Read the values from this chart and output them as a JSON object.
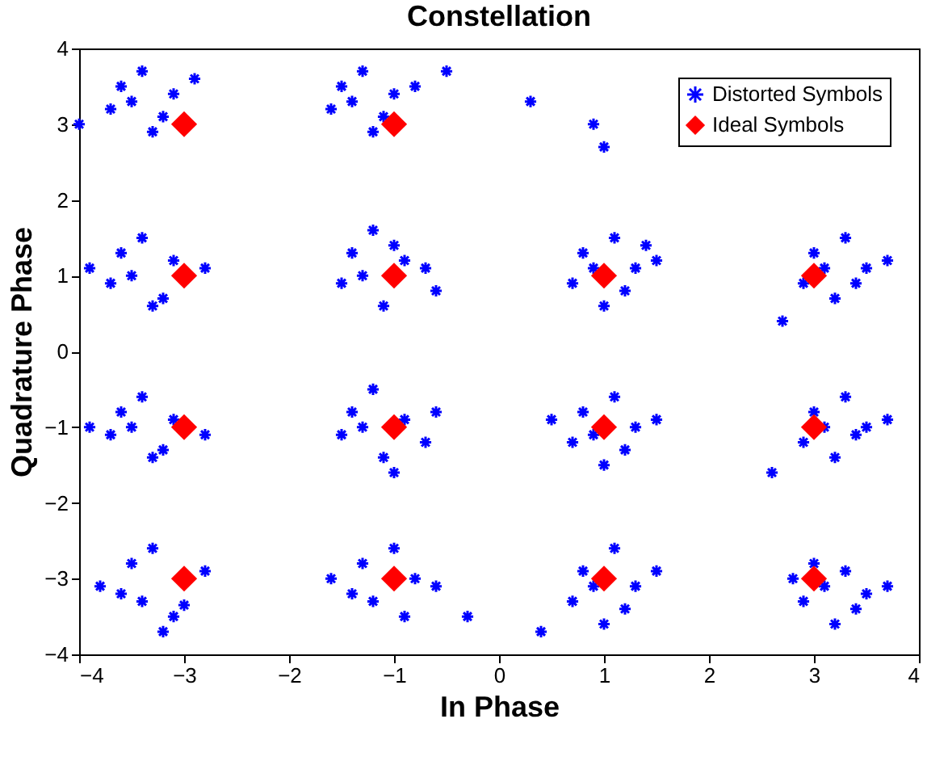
{
  "chart_data": {
    "type": "scatter",
    "title": "Constellation",
    "xlabel": "In Phase",
    "ylabel": "Quadrature Phase",
    "xlim": [
      -4,
      4
    ],
    "ylim": [
      -4,
      4
    ],
    "xticks": [
      -4,
      -3,
      -2,
      -1,
      0,
      1,
      2,
      3,
      4
    ],
    "yticks": [
      -4,
      -3,
      -2,
      -1,
      0,
      1,
      2,
      3,
      4
    ],
    "grid": false,
    "legend": "top right",
    "series": [
      {
        "name": "Distorted Symbols",
        "color": "#0000ff",
        "marker": "cross",
        "x": [
          -3.6,
          -3.4,
          -3.1,
          -3.7,
          -3.2,
          -3.5,
          -2.9,
          -3.3,
          -4.0,
          -1.5,
          -1.3,
          -1.0,
          -1.6,
          -1.1,
          -1.4,
          -0.8,
          -1.2,
          -0.5,
          0.3,
          0.9,
          1.0,
          -3.6,
          -3.4,
          -3.1,
          -3.7,
          -3.2,
          -3.5,
          -2.8,
          -3.3,
          -3.9,
          -1.4,
          -1.2,
          -0.9,
          -1.5,
          -1.1,
          -1.3,
          -0.7,
          -1.0,
          -0.6,
          0.8,
          1.1,
          1.3,
          0.7,
          1.0,
          1.2,
          1.5,
          0.9,
          1.4,
          3.0,
          3.3,
          3.5,
          2.9,
          3.2,
          3.4,
          3.7,
          3.1,
          2.7,
          -3.6,
          -3.4,
          -3.1,
          -3.7,
          -3.2,
          -3.5,
          -2.8,
          -3.3,
          -3.9,
          -1.4,
          -1.2,
          -0.9,
          -1.5,
          -1.1,
          -1.3,
          -0.7,
          -1.0,
          -0.6,
          0.8,
          1.1,
          1.3,
          0.7,
          1.0,
          1.2,
          1.5,
          0.9,
          0.5,
          3.0,
          3.3,
          3.5,
          2.9,
          3.2,
          3.4,
          3.7,
          3.1,
          2.6,
          -3.5,
          -3.3,
          -3.0,
          -3.6,
          -3.1,
          -3.4,
          -2.8,
          -3.2,
          -3.8,
          -1.3,
          -1.0,
          -0.8,
          -1.4,
          -0.9,
          -1.2,
          -0.6,
          -1.6,
          -0.3,
          0.8,
          1.1,
          1.3,
          0.7,
          1.0,
          1.2,
          1.5,
          0.9,
          0.4,
          3.0,
          3.3,
          3.5,
          2.9,
          3.2,
          3.4,
          3.7,
          3.1,
          2.8
        ],
        "values": [
          3.5,
          3.7,
          3.4,
          3.2,
          3.1,
          3.3,
          3.6,
          2.9,
          3.0,
          3.5,
          3.7,
          3.4,
          3.2,
          3.1,
          3.3,
          3.5,
          2.9,
          3.7,
          3.3,
          3.0,
          2.7,
          1.3,
          1.5,
          1.2,
          0.9,
          0.7,
          1.0,
          1.1,
          0.6,
          1.1,
          1.3,
          1.6,
          1.2,
          0.9,
          0.6,
          1.0,
          1.1,
          1.4,
          0.8,
          1.3,
          1.5,
          1.1,
          0.9,
          0.6,
          0.8,
          1.2,
          1.1,
          1.4,
          1.3,
          1.5,
          1.1,
          0.9,
          0.7,
          0.9,
          1.2,
          1.1,
          0.4,
          -0.8,
          -0.6,
          -0.9,
          -1.1,
          -1.3,
          -1.0,
          -1.1,
          -1.4,
          -1.0,
          -0.8,
          -0.5,
          -0.9,
          -1.1,
          -1.4,
          -1.0,
          -1.2,
          -1.6,
          -0.8,
          -0.8,
          -0.6,
          -1.0,
          -1.2,
          -1.5,
          -1.3,
          -0.9,
          -1.1,
          -0.9,
          -0.8,
          -0.6,
          -1.0,
          -1.2,
          -1.4,
          -1.1,
          -0.9,
          -1.0,
          -1.6,
          -2.8,
          -2.6,
          -3.35,
          -3.2,
          -3.5,
          -3.3,
          -2.9,
          -3.7,
          -3.1,
          -2.8,
          -2.6,
          -3.0,
          -3.2,
          -3.5,
          -3.3,
          -3.1,
          -3.0,
          -3.5,
          -2.9,
          -2.6,
          -3.1,
          -3.3,
          -3.6,
          -3.4,
          -2.9,
          -3.1,
          -3.7,
          -2.8,
          -2.9,
          -3.2,
          -3.3,
          -3.6,
          -3.4,
          -3.1,
          -3.1,
          -3.0
        ]
      },
      {
        "name": "Ideal Symbols",
        "color": "#ff0000",
        "marker": "diamond",
        "x": [
          -3,
          -1,
          -3,
          -1,
          1,
          3,
          -3,
          -1,
          1,
          3,
          -3,
          -1,
          1,
          3
        ],
        "values": [
          3,
          3,
          1,
          1,
          1,
          1,
          -1,
          -1,
          -1,
          -1,
          -3,
          -3,
          -3,
          -3
        ]
      }
    ]
  }
}
